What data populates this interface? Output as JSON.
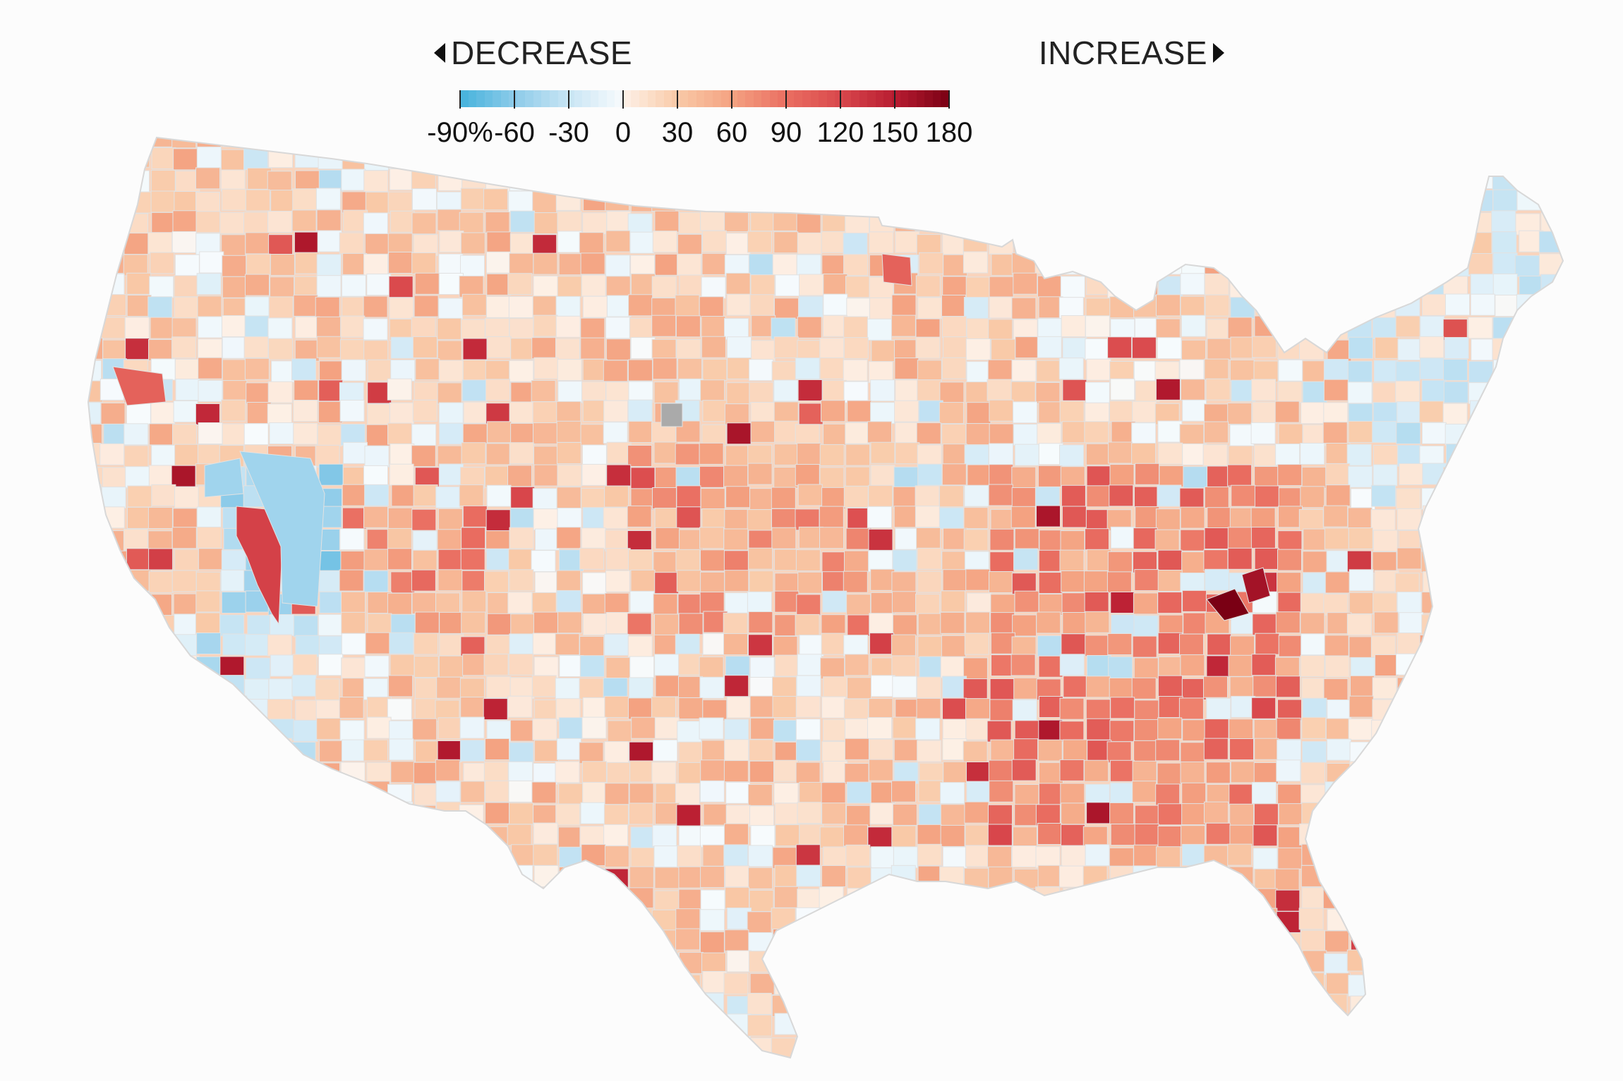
{
  "legend": {
    "decrease_label": "DECREASE",
    "increase_label": "INCREASE",
    "ticks": [
      {
        "label": "-90%",
        "value": -90
      },
      {
        "label": "-60",
        "value": -60
      },
      {
        "label": "-30",
        "value": -30
      },
      {
        "label": "0",
        "value": 0
      },
      {
        "label": "30",
        "value": 30
      },
      {
        "label": "60",
        "value": 60
      },
      {
        "label": "90",
        "value": 90
      },
      {
        "label": "120",
        "value": 120
      },
      {
        "label": "150",
        "value": 150
      },
      {
        "label": "180",
        "value": 180
      }
    ],
    "scale_min": -90,
    "scale_max": 180,
    "color_stops": [
      {
        "value": -90,
        "color": "#45b2dc"
      },
      {
        "value": -60,
        "color": "#8ccbe9"
      },
      {
        "value": -30,
        "color": "#c9e5f4"
      },
      {
        "value": 0,
        "color": "#f7fbfd"
      },
      {
        "value": 1,
        "color": "#fdf0e6"
      },
      {
        "value": 30,
        "color": "#f9caa8"
      },
      {
        "value": 60,
        "color": "#f4a281"
      },
      {
        "value": 90,
        "color": "#ea6f62"
      },
      {
        "value": 120,
        "color": "#d9484c"
      },
      {
        "value": 150,
        "color": "#b81c31"
      },
      {
        "value": 180,
        "color": "#7a0014"
      }
    ]
  },
  "map": {
    "no_data_color": "#aaaaaa",
    "border_color": "#e2e2e2"
  }
}
